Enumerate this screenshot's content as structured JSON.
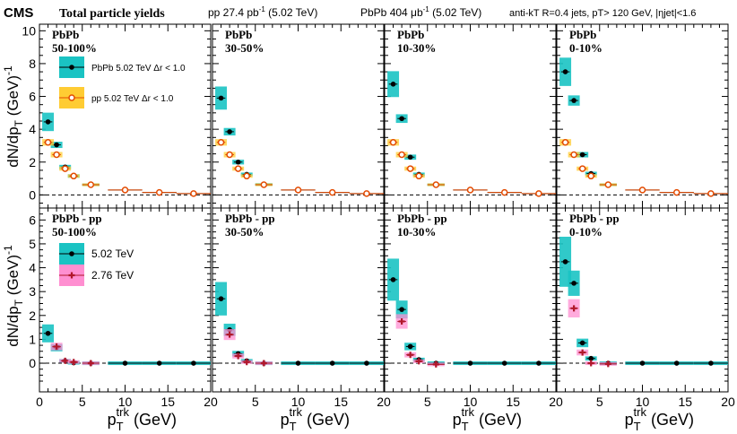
{
  "header": {
    "experiment": "CMS",
    "title": "Total particle yields",
    "pp_lumi": "pp 27.4 pb",
    "pp_lumi_sup": "-1",
    "pp_energy": " (5.02 TeV)",
    "pbpb_lumi": "PbPb 404 μb",
    "pbpb_lumi_sup": "-1",
    "pbpb_energy": " (5.02 TeV)",
    "jet_selection": "anti-kT R=0.4 jets, pT> 120 GeV, |ηjet|<1.6"
  },
  "axes": {
    "xlabel": "p",
    "xlabel_sub": "T",
    "xlabel_sup": "trk",
    "xlabel_unit": " (GeV)",
    "ylabel": "dN/dp",
    "ylabel_sub": "T",
    "ylabel_unit": " (GeV)",
    "ylabel_sup": "-1"
  },
  "legend_top": [
    {
      "label": "PbPb 5.02 TeV Δr < 1.0",
      "color": "#1ac3c3",
      "marker": "#000000"
    },
    {
      "label": "pp 5.02 TeV Δr < 1.0",
      "color": "#ffcc33",
      "marker": "#e34a00"
    }
  ],
  "legend_bottom": [
    {
      "label": "5.02 TeV",
      "color": "#1ac3c3",
      "marker": "#000000"
    },
    {
      "label": "2.76 TeV",
      "color": "#ff8fd1",
      "marker": "#b0172a"
    }
  ],
  "chart_data": [
    {
      "type": "scatter",
      "row": "top",
      "ylim": [
        -0.8,
        10.4
      ],
      "yticks": [
        "0",
        "2",
        "4",
        "6",
        "8",
        "10"
      ],
      "xlim": [
        0,
        20
      ],
      "xticks": [
        "0",
        "5",
        "10",
        "15",
        "20"
      ],
      "panels": [
        {
          "title": "PbPb",
          "centrality": "50-100%",
          "series": [
            {
              "name": "PbPb 5.02 TeV Δr < 1.0",
              "x": [
                1,
                2,
                3,
                4,
                6,
                10,
                14,
                18
              ],
              "xerr": [
                0.5,
                0.5,
                0.5,
                0.5,
                1,
                2,
                2,
                2
              ],
              "y": [
                4.45,
                3.05,
                1.7,
                1.15,
                0.62,
                0.3,
                0.15,
                0.08
              ]
            },
            {
              "name": "pp 5.02 TeV Δr < 1.0",
              "x": [
                1,
                2,
                3,
                4,
                6,
                10,
                14,
                18
              ],
              "xerr": [
                0.5,
                0.5,
                0.5,
                0.5,
                1,
                2,
                2,
                2
              ],
              "y": [
                3.2,
                2.45,
                1.6,
                1.15,
                0.62,
                0.3,
                0.15,
                0.08
              ]
            }
          ]
        },
        {
          "title": "PbPb",
          "centrality": "30-50%",
          "series": [
            {
              "name": "PbPb 5.02 TeV Δr < 1.0",
              "x": [
                1,
                2,
                3,
                4,
                6,
                10,
                14,
                18
              ],
              "xerr": [
                0.5,
                0.5,
                0.5,
                0.5,
                1,
                2,
                2,
                2
              ],
              "y": [
                5.9,
                3.85,
                2.0,
                1.25,
                0.63,
                0.3,
                0.15,
                0.08
              ]
            },
            {
              "name": "pp 5.02 TeV Δr < 1.0",
              "x": [
                1,
                2,
                3,
                4,
                6,
                10,
                14,
                18
              ],
              "xerr": [
                0.5,
                0.5,
                0.5,
                0.5,
                1,
                2,
                2,
                2
              ],
              "y": [
                3.2,
                2.45,
                1.6,
                1.15,
                0.62,
                0.3,
                0.15,
                0.08
              ]
            }
          ]
        },
        {
          "title": "PbPb",
          "centrality": "10-30%",
          "series": [
            {
              "name": "PbPb 5.02 TeV Δr < 1.0",
              "x": [
                1,
                2,
                3,
                4,
                6,
                10,
                14,
                18
              ],
              "xerr": [
                0.5,
                0.5,
                0.5,
                0.5,
                1,
                2,
                2,
                2
              ],
              "y": [
                6.75,
                4.65,
                2.3,
                1.25,
                0.62,
                0.3,
                0.15,
                0.08
              ]
            },
            {
              "name": "pp 5.02 TeV Δr < 1.0",
              "x": [
                1,
                2,
                3,
                4,
                6,
                10,
                14,
                18
              ],
              "xerr": [
                0.5,
                0.5,
                0.5,
                0.5,
                1,
                2,
                2,
                2
              ],
              "y": [
                3.2,
                2.45,
                1.6,
                1.15,
                0.62,
                0.3,
                0.15,
                0.08
              ]
            }
          ]
        },
        {
          "title": "PbPb",
          "centrality": "0-10%",
          "series": [
            {
              "name": "PbPb 5.02 TeV Δr < 1.0",
              "x": [
                1,
                2,
                3,
                4,
                6,
                10,
                14,
                18
              ],
              "xerr": [
                0.5,
                0.5,
                0.5,
                0.5,
                1,
                2,
                2,
                2
              ],
              "y": [
                7.5,
                5.75,
                2.45,
                1.3,
                0.62,
                0.3,
                0.15,
                0.08
              ]
            },
            {
              "name": "pp 5.02 TeV Δr < 1.0",
              "x": [
                1,
                2,
                3,
                4,
                6,
                10,
                14,
                18
              ],
              "xerr": [
                0.5,
                0.5,
                0.5,
                0.5,
                1,
                2,
                2,
                2
              ],
              "y": [
                3.2,
                2.45,
                1.6,
                1.15,
                0.62,
                0.3,
                0.15,
                0.08
              ]
            }
          ]
        }
      ]
    },
    {
      "type": "scatter",
      "row": "bottom",
      "ylim": [
        -1.2,
        6.5
      ],
      "yticks": [
        "0",
        "1",
        "2",
        "3",
        "4",
        "5",
        "6"
      ],
      "xlim": [
        0,
        20
      ],
      "xticks": [
        "0",
        "5",
        "10",
        "15",
        "20"
      ],
      "panels": [
        {
          "title": "PbPb - pp",
          "centrality": "50-100%",
          "series": [
            {
              "name": "5.02 TeV",
              "x": [
                1,
                2,
                3,
                4,
                6,
                10,
                14,
                18
              ],
              "xerr": [
                0.5,
                0.5,
                0.5,
                0.5,
                1,
                2,
                2,
                2
              ],
              "y": [
                1.25,
                0.65,
                0.1,
                0.02,
                0.0,
                0.0,
                0.0,
                0.0
              ]
            },
            {
              "name": "2.76 TeV",
              "x": [
                2,
                3,
                4,
                6
              ],
              "xerr": [
                0.5,
                0.5,
                0.5,
                1
              ],
              "y": [
                0.7,
                0.1,
                0.05,
                0.0
              ]
            }
          ]
        },
        {
          "title": "PbPb - pp",
          "centrality": "30-50%",
          "series": [
            {
              "name": "5.02 TeV",
              "x": [
                1,
                2,
                3,
                4,
                6,
                10,
                14,
                18
              ],
              "xerr": [
                0.5,
                0.5,
                0.5,
                0.5,
                1,
                2,
                2,
                2
              ],
              "y": [
                2.7,
                1.4,
                0.4,
                0.1,
                0.0,
                0.0,
                0.0,
                0.0
              ]
            },
            {
              "name": "2.76 TeV",
              "x": [
                2,
                3,
                4,
                6
              ],
              "xerr": [
                0.5,
                0.5,
                0.5,
                1
              ],
              "y": [
                1.2,
                0.3,
                0.05,
                0.0
              ]
            }
          ]
        },
        {
          "title": "PbPb - pp",
          "centrality": "10-30%",
          "series": [
            {
              "name": "5.02 TeV",
              "x": [
                1,
                2,
                3,
                4,
                6,
                10,
                14,
                18
              ],
              "xerr": [
                0.5,
                0.5,
                0.5,
                0.5,
                1,
                2,
                2,
                2
              ],
              "y": [
                3.5,
                2.25,
                0.7,
                0.15,
                0.0,
                0.0,
                0.0,
                0.0
              ]
            },
            {
              "name": "2.76 TeV",
              "x": [
                2,
                3,
                4,
                6
              ],
              "xerr": [
                0.5,
                0.5,
                0.5,
                1
              ],
              "y": [
                1.75,
                0.35,
                0.08,
                -0.05
              ]
            }
          ]
        },
        {
          "title": "PbPb - pp",
          "centrality": "0-10%",
          "series": [
            {
              "name": "5.02 TeV",
              "x": [
                1,
                2,
                3,
                4,
                6,
                10,
                14,
                18
              ],
              "xerr": [
                0.5,
                0.5,
                0.5,
                0.5,
                1,
                2,
                2,
                2
              ],
              "y": [
                4.25,
                3.35,
                0.85,
                0.2,
                0.0,
                0.0,
                0.0,
                0.0
              ]
            },
            {
              "name": "2.76 TeV",
              "x": [
                2,
                3,
                4,
                6
              ],
              "xerr": [
                0.5,
                0.5,
                0.5,
                1
              ],
              "y": [
                2.3,
                0.45,
                0.0,
                -0.03
              ]
            }
          ]
        }
      ]
    }
  ]
}
